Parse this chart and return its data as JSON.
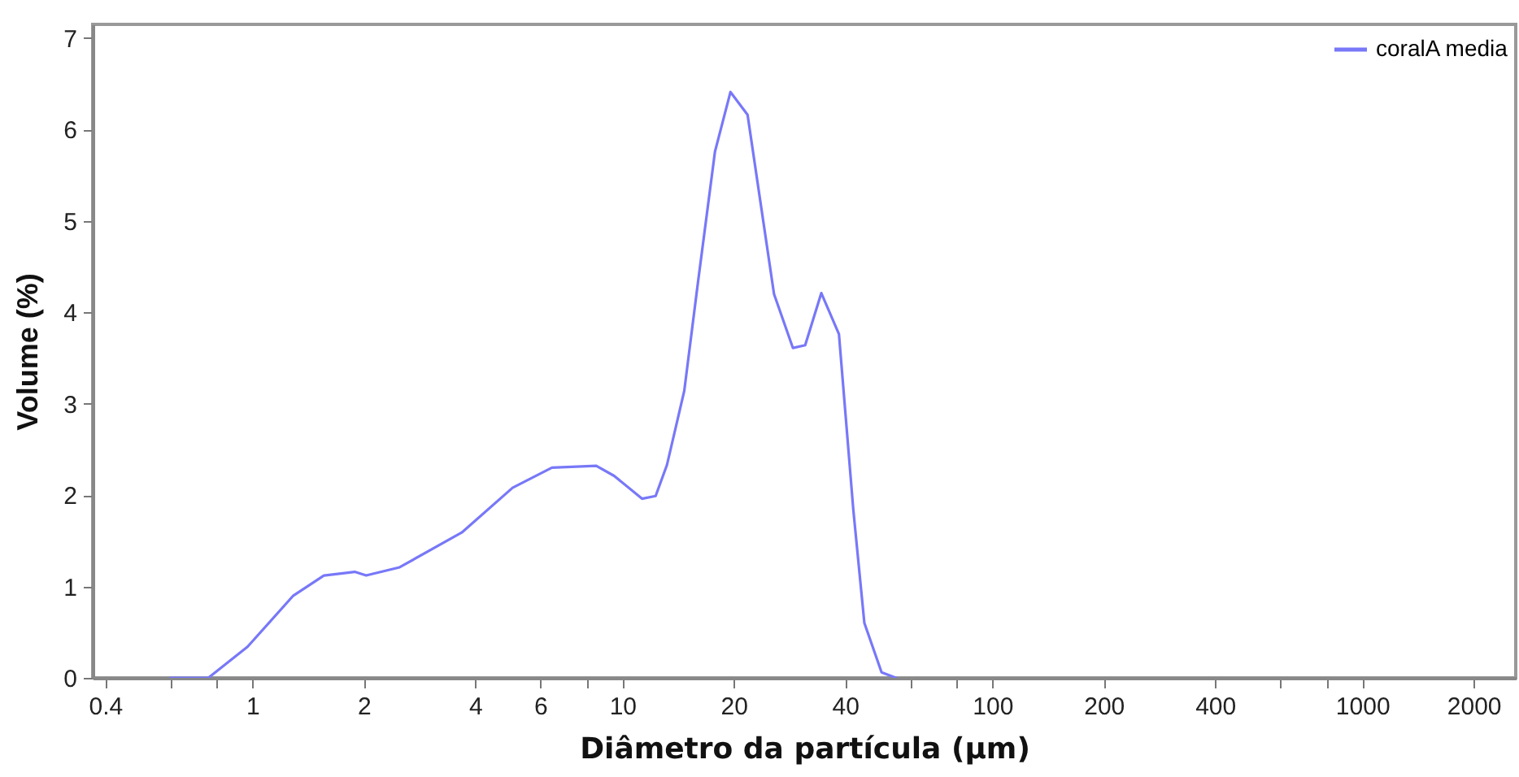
{
  "chart_data": {
    "type": "line",
    "xlabel": "Diâmetro da partícula (μm)",
    "ylabel": "Volume (%)",
    "log": "x",
    "legend": "top right",
    "grid": false,
    "xlim": [
      0.37,
      2600
    ],
    "ylim": [
      0,
      7.15
    ],
    "xticks": [
      0.4,
      {
        "value": 0.6,
        "label": null
      },
      {
        "value": 0.8,
        "label": null
      },
      1,
      2,
      4,
      6,
      {
        "value": 8,
        "label": null
      },
      10,
      20,
      40,
      {
        "value": 60,
        "label": null
      },
      {
        "value": 80,
        "label": null
      },
      100,
      200,
      400,
      {
        "value": 600,
        "label": null
      },
      {
        "value": 800,
        "label": null
      },
      1000,
      2000
    ],
    "yticks": [
      0,
      1,
      2,
      3,
      4,
      5,
      6,
      7
    ],
    "series": [
      {
        "name": "coralA media",
        "color": "#7878f8",
        "x": [
          0.6,
          0.76,
          0.97,
          1.29,
          1.56,
          1.89,
          2.03,
          2.5,
          3.68,
          5.05,
          6.45,
          8.5,
          9.5,
          11.3,
          12.3,
          13.2,
          14.7,
          16.0,
          17.8,
          19.6,
          21.8,
          25.7,
          28.9,
          31.2,
          34.5,
          38.5,
          42.1,
          45.1,
          50.2,
          54.9
        ],
        "values": [
          0,
          0,
          0.34,
          0.9,
          1.12,
          1.16,
          1.12,
          1.21,
          1.59,
          2.08,
          2.3,
          2.32,
          2.21,
          1.96,
          1.99,
          2.33,
          3.14,
          4.32,
          5.76,
          6.41,
          6.16,
          4.2,
          3.61,
          3.64,
          4.21,
          3.76,
          1.84,
          0.6,
          0.06,
          0
        ]
      }
    ]
  }
}
